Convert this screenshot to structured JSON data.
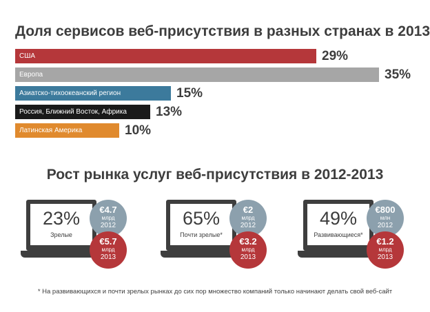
{
  "chart_data": {
    "type": "bar",
    "title": "Доля сервисов веб-присутствия в разных странах в 2013",
    "categories": [
      "США",
      "Европа",
      "Азиатско-тихоокеанский регион",
      "Россия, Ближний Восток, Африка",
      "Латинская Америка"
    ],
    "values": [
      29,
      35,
      15,
      13,
      10
    ],
    "value_labels": [
      "29%",
      "35%",
      "15%",
      "13%",
      "10%"
    ],
    "colors": [
      "#b5373a",
      "#a6a6a6",
      "#3c7a9c",
      "#1a1a1a",
      "#e08a2e"
    ],
    "xlim": [
      0,
      35
    ]
  },
  "growth": {
    "title": "Рост рынка услуг веб-присутствия в 2012-2013",
    "segments": [
      {
        "percent": "23%",
        "label": "Зрелые",
        "y2012": {
          "amount": "€4.7",
          "unit": "млрд",
          "year": "2012"
        },
        "y2013": {
          "amount": "€5.7",
          "unit": "млрд",
          "year": "2013"
        }
      },
      {
        "percent": "65%",
        "label": "Почти зрелые*",
        "y2012": {
          "amount": "€2",
          "unit": "млрд",
          "year": "2012"
        },
        "y2013": {
          "amount": "€3.2",
          "unit": "млрд",
          "year": "2013"
        }
      },
      {
        "percent": "49%",
        "label": "Развивающиеся*",
        "y2012": {
          "amount": "€800",
          "unit": "млн",
          "year": "2012"
        },
        "y2013": {
          "amount": "€1.2",
          "unit": "млрд",
          "year": "2013"
        }
      }
    ]
  },
  "footnote": "* На развивающихся и почти зрелых рынках до сих пор множество компаний только начинают делать свой веб-сайт"
}
